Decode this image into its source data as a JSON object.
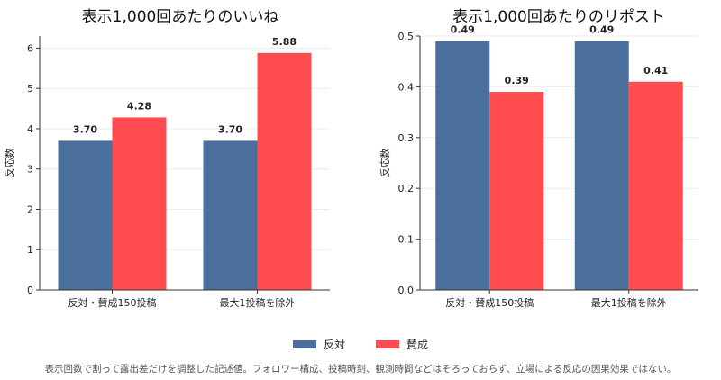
{
  "colors": {
    "series_0": "#4a6f9c",
    "series_1": "#ff4d4f",
    "grid": "#ececec",
    "axis": "#333333"
  },
  "chart_data": [
    {
      "type": "bar",
      "title": "表示1,000回あたりのいいね",
      "ylabel": "反応数",
      "categories": [
        "反対・賛成150投稿",
        "最大1投稿を除外"
      ],
      "series": [
        {
          "name": "反対",
          "values": [
            3.7,
            3.7
          ],
          "labels": [
            "3.70",
            "3.70"
          ]
        },
        {
          "name": "賛成",
          "values": [
            4.28,
            5.88
          ],
          "labels": [
            "4.28",
            "5.88"
          ]
        }
      ],
      "ylim": [
        0,
        6.3
      ],
      "yticks": [
        "0",
        "1",
        "2",
        "3",
        "4",
        "5",
        "6"
      ],
      "ytick_values": [
        0,
        1,
        2,
        3,
        4,
        5,
        6
      ],
      "grid": true
    },
    {
      "type": "bar",
      "title": "表示1,000回あたりのリポスト",
      "ylabel": "反応数",
      "categories": [
        "反対・賛成150投稿",
        "最大1投稿を除外"
      ],
      "series": [
        {
          "name": "反対",
          "values": [
            0.49,
            0.49
          ],
          "labels": [
            "0.49",
            "0.49"
          ]
        },
        {
          "name": "賛成",
          "values": [
            0.39,
            0.41
          ],
          "labels": [
            "0.39",
            "0.41"
          ]
        }
      ],
      "ylim": [
        0,
        0.5
      ],
      "yticks": [
        "0.0",
        "0.1",
        "0.2",
        "0.3",
        "0.4",
        "0.5"
      ],
      "ytick_values": [
        0.0,
        0.1,
        0.2,
        0.3,
        0.4,
        0.5
      ],
      "grid": true
    }
  ],
  "legend": {
    "items": [
      "反対",
      "賛成"
    ]
  },
  "footnote": "表示回数で割って露出差だけを調整した記述値。フォロワー構成、投稿時刻、観測時間などはそろっておらず、立場による反応の因果効果ではない。"
}
